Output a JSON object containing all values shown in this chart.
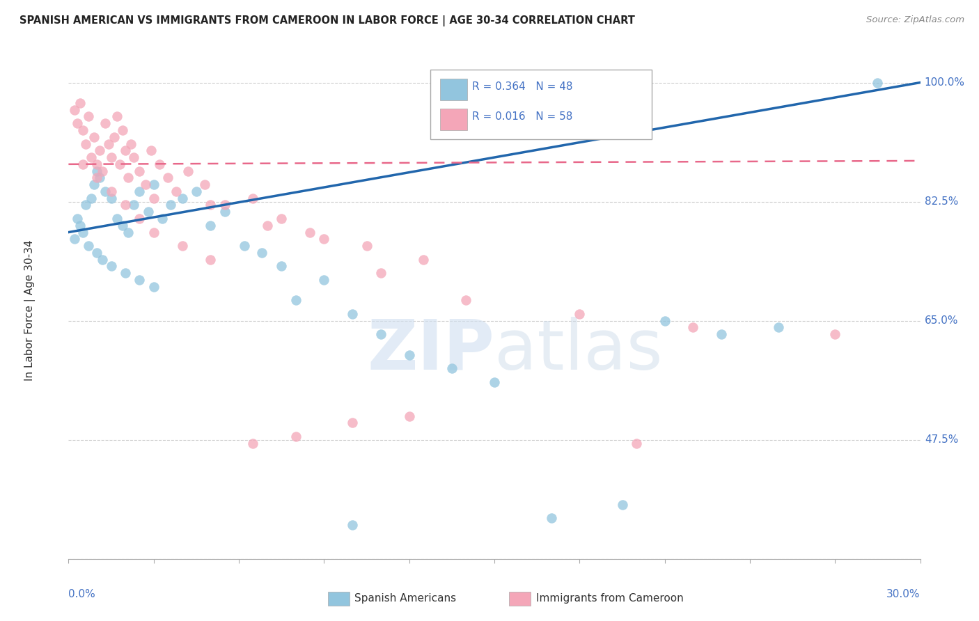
{
  "title": "SPANISH AMERICAN VS IMMIGRANTS FROM CAMEROON IN LABOR FORCE | AGE 30-34 CORRELATION CHART",
  "source": "Source: ZipAtlas.com",
  "ylabel_label": "In Labor Force | Age 30-34",
  "legend_r1": "R = 0.364",
  "legend_n1": "N = 48",
  "legend_r2": "R = 0.016",
  "legend_n2": "N = 58",
  "blue_color": "#92c5de",
  "pink_color": "#f4a6b8",
  "trend_blue": "#2166ac",
  "trend_pink": "#e8688a",
  "xmin": 0.0,
  "xmax": 30.0,
  "ymin": 30.0,
  "ymax": 103.0,
  "yticks": [
    30.0,
    47.5,
    65.0,
    82.5,
    100.0
  ],
  "blue_x": [
    0.3,
    0.5,
    0.6,
    0.8,
    0.9,
    1.0,
    1.1,
    1.3,
    1.5,
    1.7,
    1.9,
    2.1,
    2.3,
    2.5,
    2.8,
    3.0,
    3.3,
    3.6,
    4.0,
    4.5,
    5.0,
    5.5,
    6.2,
    6.8,
    7.5,
    8.0,
    9.0,
    10.0,
    11.0,
    12.0,
    13.5,
    15.0,
    17.0,
    19.5,
    21.0,
    23.0,
    25.0,
    28.5
  ],
  "blue_y": [
    80.0,
    78.0,
    82.0,
    83.0,
    85.0,
    87.0,
    86.0,
    84.0,
    83.0,
    80.0,
    79.0,
    78.0,
    82.0,
    84.0,
    81.0,
    85.0,
    80.0,
    82.0,
    83.0,
    84.0,
    79.0,
    81.0,
    76.0,
    75.0,
    73.0,
    68.0,
    71.0,
    66.0,
    63.0,
    60.0,
    58.0,
    56.0,
    36.0,
    38.0,
    65.0,
    63.0,
    64.0,
    100.0
  ],
  "blue_x2": [
    0.2,
    0.4,
    0.7,
    1.0,
    1.2,
    1.5,
    2.0,
    2.5,
    3.0,
    10.0
  ],
  "blue_y2": [
    77.0,
    79.0,
    76.0,
    75.0,
    74.0,
    73.0,
    72.0,
    71.0,
    70.0,
    35.0
  ],
  "pink_x": [
    0.2,
    0.3,
    0.4,
    0.5,
    0.6,
    0.7,
    0.8,
    0.9,
    1.0,
    1.1,
    1.2,
    1.3,
    1.4,
    1.5,
    1.6,
    1.7,
    1.8,
    1.9,
    2.0,
    2.1,
    2.2,
    2.3,
    2.5,
    2.7,
    2.9,
    3.2,
    3.5,
    3.8,
    4.2,
    4.8,
    5.5,
    6.5,
    7.5,
    8.5,
    10.5,
    12.5,
    3.0,
    5.0,
    7.0,
    9.0,
    11.0,
    14.0,
    18.0,
    22.0,
    27.0
  ],
  "pink_y": [
    96.0,
    94.0,
    97.0,
    93.0,
    91.0,
    95.0,
    89.0,
    92.0,
    88.0,
    90.0,
    87.0,
    94.0,
    91.0,
    89.0,
    92.0,
    95.0,
    88.0,
    93.0,
    90.0,
    86.0,
    91.0,
    89.0,
    87.0,
    85.0,
    90.0,
    88.0,
    86.0,
    84.0,
    87.0,
    85.0,
    82.0,
    83.0,
    80.0,
    78.0,
    76.0,
    74.0,
    83.0,
    82.0,
    79.0,
    77.0,
    72.0,
    68.0,
    66.0,
    64.0,
    63.0
  ],
  "pink_x2": [
    0.5,
    1.0,
    1.5,
    2.0,
    2.5,
    3.0,
    4.0,
    5.0,
    6.5,
    8.0,
    10.0,
    12.0,
    20.0
  ],
  "pink_y2": [
    88.0,
    86.0,
    84.0,
    82.0,
    80.0,
    78.0,
    76.0,
    74.0,
    47.0,
    48.0,
    50.0,
    51.0,
    47.0
  ]
}
